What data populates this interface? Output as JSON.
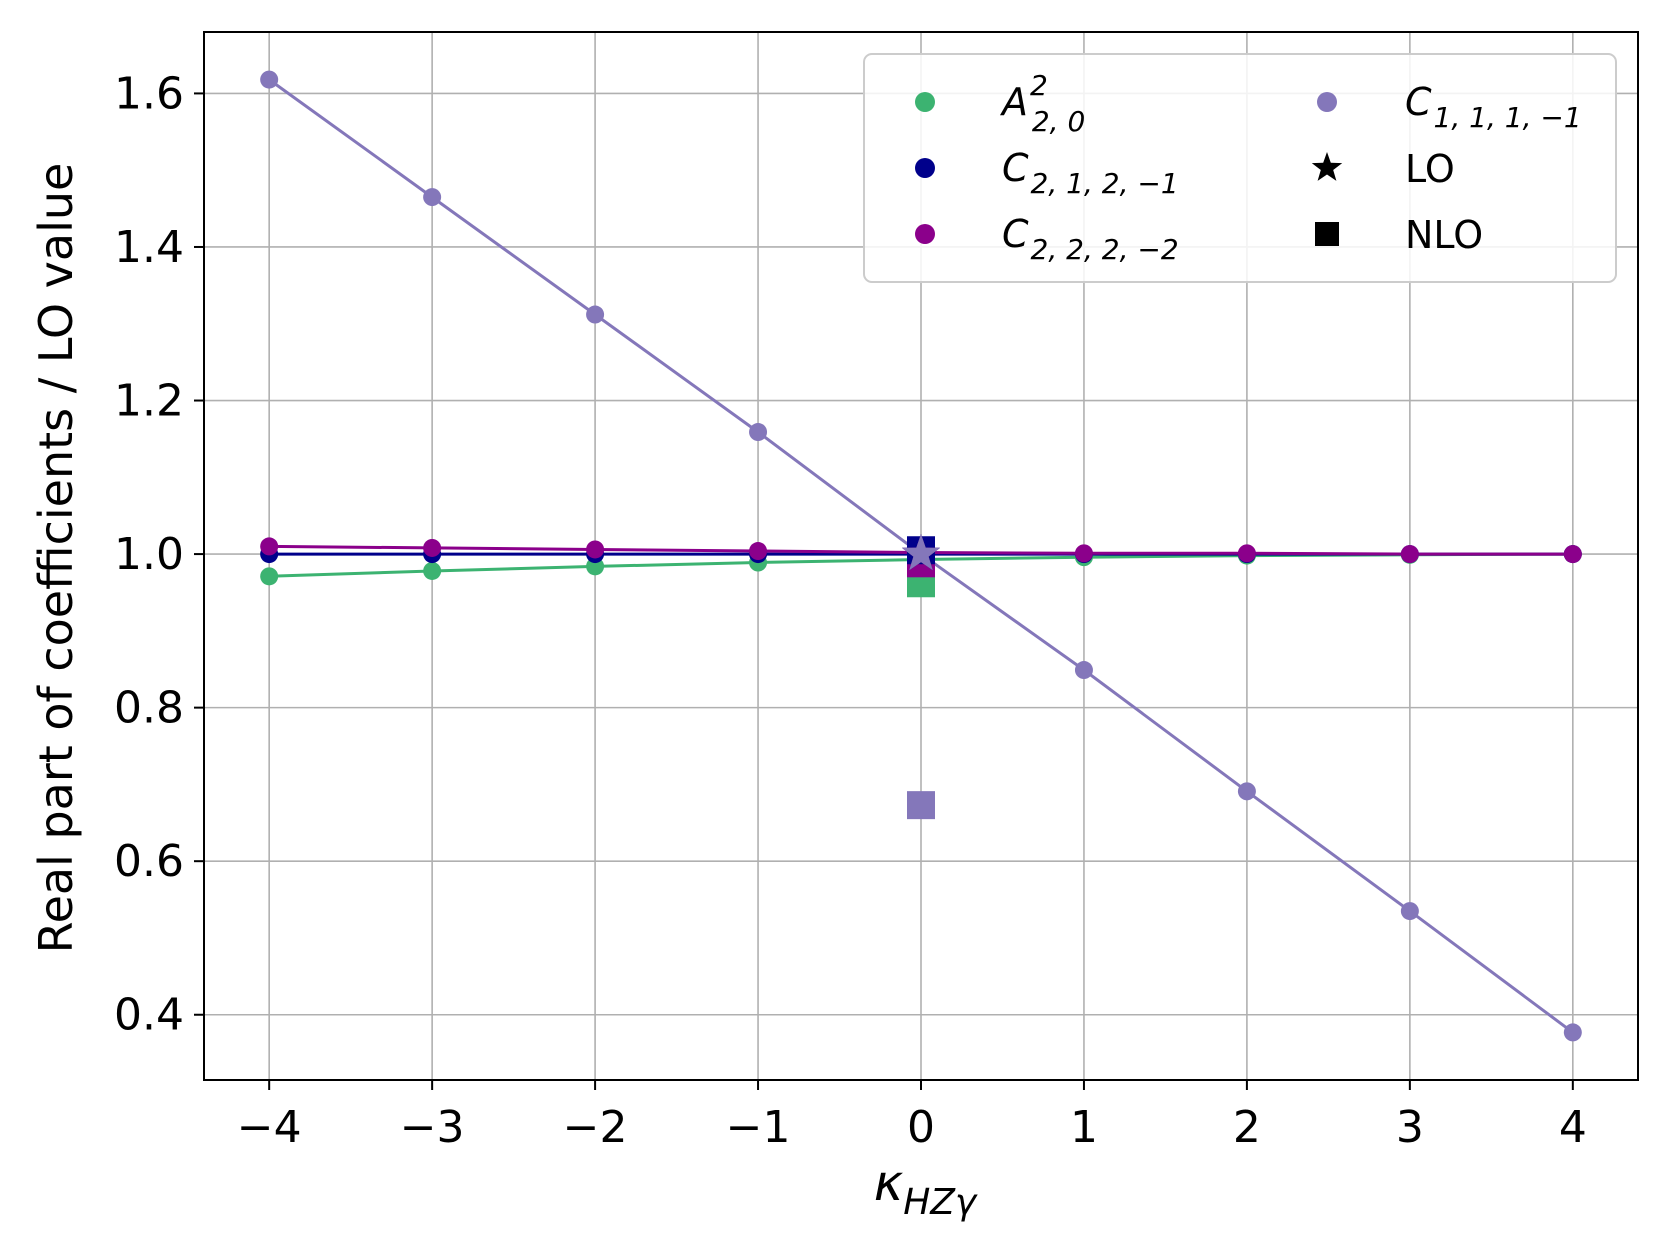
{
  "chart_data": {
    "type": "line",
    "xlabel": "κ",
    "xlabel_sub": "HZγ",
    "ylabel": "Real part of coefficients / LO value",
    "xlim": [
      -4.4,
      4.4
    ],
    "ylim": [
      0.315,
      1.68
    ],
    "x_ticks": [
      -4,
      -3,
      -2,
      -1,
      0,
      1,
      2,
      3,
      4
    ],
    "x_tick_labels": [
      "−4",
      "−3",
      "−2",
      "−1",
      "0",
      "1",
      "2",
      "3",
      "4"
    ],
    "y_ticks": [
      0.4,
      0.6,
      0.8,
      1.0,
      1.2,
      1.4,
      1.6
    ],
    "y_tick_labels": [
      "0.4",
      "0.6",
      "0.8",
      "1.0",
      "1.2",
      "1.4",
      "1.6"
    ],
    "grid": true,
    "legend_position": "top-right",
    "x": [
      -4,
      -3,
      -2,
      -1,
      0,
      1,
      2,
      3,
      4
    ],
    "series": [
      {
        "name": "A",
        "name_sup": "2",
        "name_sub": "2, 0",
        "color": "#3cb371",
        "values": [
          0.971,
          0.978,
          0.984,
          0.989,
          0.993,
          0.996,
          0.998,
          0.999,
          1.0
        ],
        "nlo": 0.962
      },
      {
        "name": "C",
        "name_sub": "2, 1, 2, −1",
        "color": "#00008b",
        "values": [
          1.0,
          1.0,
          1.0,
          1.0,
          1.0,
          1.0,
          1.0,
          1.0,
          1.0
        ],
        "nlo": 1.005
      },
      {
        "name": "C",
        "name_sub": "2, 2, 2, −2",
        "color": "#8b008b",
        "values": [
          1.01,
          1.008,
          1.006,
          1.004,
          1.002,
          1.001,
          1.001,
          1.0,
          1.0
        ],
        "nlo": 0.988
      },
      {
        "name": "C",
        "name_sub": "1, 1, 1, −1",
        "color": "#8477ba",
        "values": [
          1.618,
          1.465,
          1.312,
          1.159,
          1.0,
          0.849,
          0.691,
          0.535,
          0.377
        ],
        "nlo": 0.673
      }
    ],
    "markers": {
      "lo_label": "LO",
      "nlo_label": "NLO",
      "lo_x": 0,
      "lo_value": 1.0
    }
  }
}
